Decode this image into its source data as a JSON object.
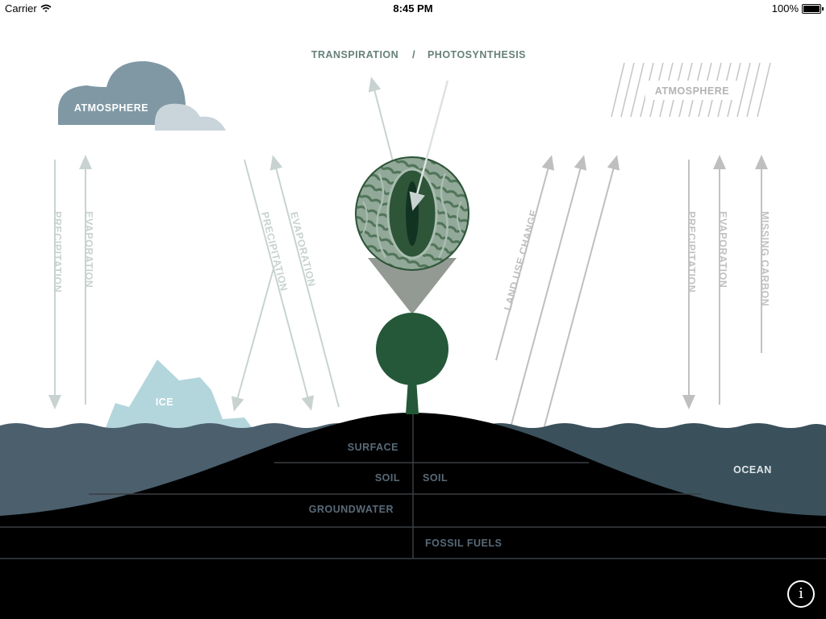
{
  "status_bar": {
    "carrier": "Carrier",
    "time": "8:45 PM",
    "battery": "100%",
    "battery_level": 1.0,
    "icons": [
      "wifi-icon",
      "battery-icon"
    ]
  },
  "header": {
    "transpiration": "TRANSPIRATION",
    "separator": "/",
    "photosynthesis": "PHOTOSYNTHESIS"
  },
  "clouds": {
    "left_atmosphere": "ATMOSPHERE",
    "right_atmosphere": "ATMOSPHERE"
  },
  "arrows": {
    "left_precipitation": "PRECIPITATION",
    "left_evaporation": "EVAPORATION",
    "mid_precipitation": "PRECIPITATION",
    "mid_evaporation": "EVAPORATION",
    "land_use_change": "LAND USE CHANGE",
    "right_precipitation": "PRECIPITATION",
    "right_evaporation": "EVAPORATION",
    "missing_carbon": "MISSING CARBON"
  },
  "ice": "ICE",
  "layers": {
    "surface": "SURFACE",
    "soil_left": "SOIL",
    "soil_right": "SOIL",
    "groundwater": "GROUNDWATER",
    "fossil_fuels": "FOSSIL FUELS",
    "ocean": "OCEAN"
  },
  "info_button": "i",
  "colors": {
    "cloud": "#7f98a4",
    "cloud_light": "#c9d5da",
    "arrow": "#c8d3d1",
    "arrow_dark": "#bfbfbf",
    "ice": "#b3d6dc",
    "ocean_left": "#4b5f6d",
    "ocean_right": "#3a515c",
    "ground": "#000000",
    "ground_text": "#596a78",
    "tree": "#245838",
    "stoma": "#3d6648",
    "header_text": "#66807a"
  }
}
